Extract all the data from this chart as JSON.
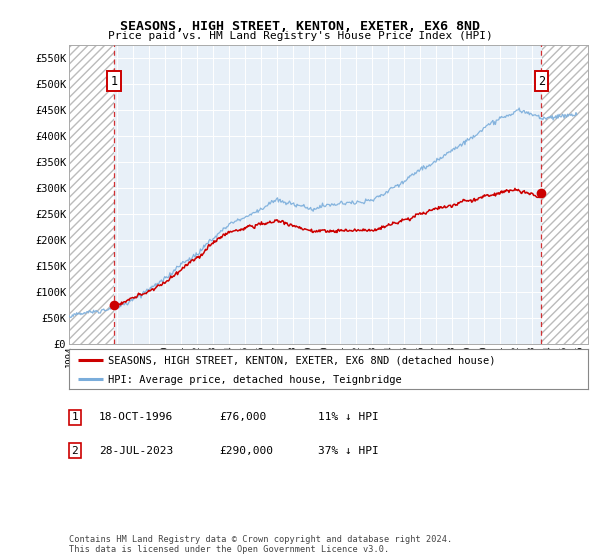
{
  "title": "SEASONS, HIGH STREET, KENTON, EXETER, EX6 8ND",
  "subtitle": "Price paid vs. HM Land Registry's House Price Index (HPI)",
  "ylim": [
    0,
    575000
  ],
  "yticks": [
    0,
    50000,
    100000,
    150000,
    200000,
    250000,
    300000,
    350000,
    400000,
    450000,
    500000,
    550000
  ],
  "ytick_labels": [
    "£0",
    "£50K",
    "£100K",
    "£150K",
    "£200K",
    "£250K",
    "£300K",
    "£350K",
    "£400K",
    "£450K",
    "£500K",
    "£550K"
  ],
  "xlim_start": 1994.0,
  "xlim_end": 2026.5,
  "hatch_left_end": 1996.8,
  "hatch_right_start": 2023.65,
  "sale1_x": 1996.8,
  "sale1_y": 76000,
  "sale2_x": 2023.58,
  "sale2_y": 290000,
  "legend_line1": "SEASONS, HIGH STREET, KENTON, EXETER, EX6 8ND (detached house)",
  "legend_line2": "HPI: Average price, detached house, Teignbridge",
  "note1_date": "18-OCT-1996",
  "note1_price": "£76,000",
  "note1_hpi": "11% ↓ HPI",
  "note2_date": "28-JUL-2023",
  "note2_price": "£290,000",
  "note2_hpi": "37% ↓ HPI",
  "footer": "Contains HM Land Registry data © Crown copyright and database right 2024.\nThis data is licensed under the Open Government Licence v3.0.",
  "red_color": "#cc0000",
  "blue_color": "#7aaddb",
  "hatch_color": "#bbbbbb",
  "plot_bg": "#e8f0f8"
}
